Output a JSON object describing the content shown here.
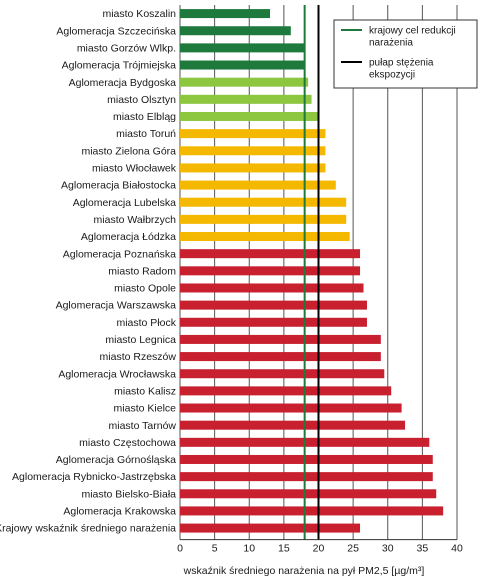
{
  "chart_data": {
    "type": "bar",
    "orientation": "horizontal",
    "categories": [
      "miasto Koszalin",
      "Aglomeracja Szczecińska",
      "miasto Gorzów Wlkp.",
      "Aglomeracja Trójmiejska",
      "Aglomeracja Bydgoska",
      "miasto Olsztyn",
      "miasto Elbląg",
      "miasto Toruń",
      "miasto Zielona Góra",
      "miasto Włocławek",
      "Aglomeracja Białostocka",
      "Aglomeracja Lubelska",
      "miasto Wałbrzych",
      "Aglomeracja Łódzka",
      "Aglomeracja Poznańska",
      "miasto Radom",
      "miasto Opole",
      "Aglomeracja Warszawska",
      "miasto Płock",
      "miasto Legnica",
      "miasto Rzeszów",
      "Aglomeracja Wrocławska",
      "miasto Kalisz",
      "miasto Kielce",
      "miasto Tarnów",
      "miasto Częstochowa",
      "Aglomeracja Górnośląska",
      "Aglomeracja Rybnicko-Jastrzębska",
      "miasto Bielsko-Biała",
      "Aglomeracja Krakowska",
      "Krajowy wskaźnik średniego narażenia"
    ],
    "values": [
      13,
      16,
      18,
      18,
      18.5,
      19,
      20,
      21,
      21,
      21,
      22.5,
      24,
      24,
      24.5,
      26,
      26,
      26.5,
      27,
      27,
      29,
      29,
      29.5,
      30.5,
      32,
      32.5,
      36,
      36.5,
      36.5,
      37,
      38,
      26
    ],
    "bar_colors": [
      "#1e7a3c",
      "#1e7a3c",
      "#1e7a3c",
      "#1e7a3c",
      "#8dc63f",
      "#8dc63f",
      "#8dc63f",
      "#f5b800",
      "#f5b800",
      "#f5b800",
      "#f5b800",
      "#f5b800",
      "#f5b800",
      "#f5b800",
      "#c8202f",
      "#c8202f",
      "#c8202f",
      "#c8202f",
      "#c8202f",
      "#c8202f",
      "#c8202f",
      "#c8202f",
      "#c8202f",
      "#c8202f",
      "#c8202f",
      "#c8202f",
      "#c8202f",
      "#c8202f",
      "#c8202f",
      "#c8202f",
      "#c8202f"
    ],
    "xlim": [
      0,
      40
    ],
    "xticks": [
      0,
      5,
      10,
      15,
      20,
      25,
      30,
      35,
      40
    ],
    "xlabel": "wskaźnik średniego narażenia na pył PM2,5 [µg/m³]",
    "grid": "vertical",
    "reference_lines": [
      {
        "name": "krajowy cel redukcji narażenia",
        "value": 18,
        "color": "#1e7a3c"
      },
      {
        "name": "pułap stężenia ekspozycji",
        "value": 20,
        "color": "#000000"
      }
    ],
    "legend": {
      "position": "top-right",
      "entries": [
        {
          "label": "krajowy cel redukcji narażenia",
          "color": "#1e7a3c"
        },
        {
          "label": "pułap stężenia ekspozycji",
          "color": "#000000"
        }
      ]
    }
  }
}
